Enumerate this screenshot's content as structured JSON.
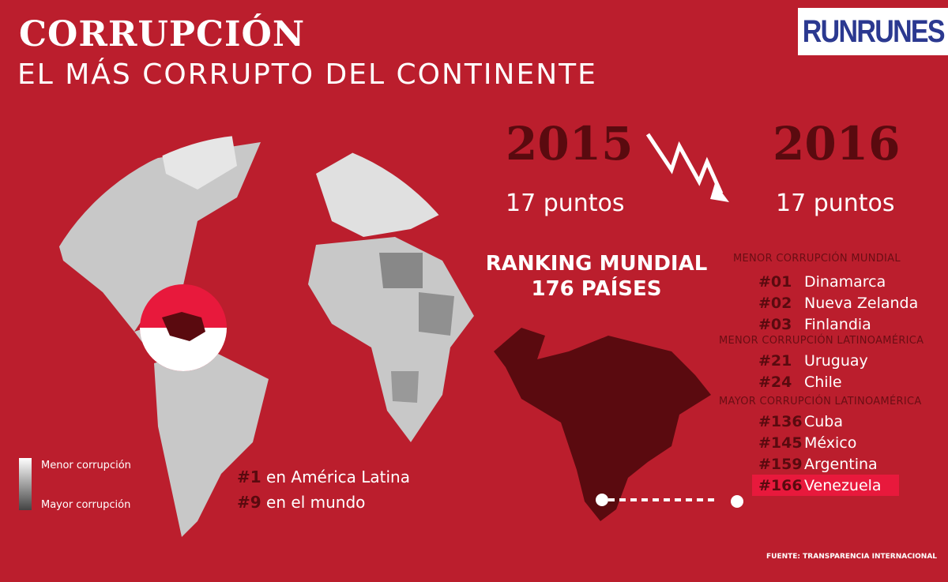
{
  "header": {
    "title": "CORRUPCIÓN",
    "subtitle": "EL MÁS CORRUPTO DEL CONTINENTE",
    "logo": "RUNRUNES"
  },
  "comparison": {
    "year_a": "2015",
    "points_a": "17 puntos",
    "year_b": "2016",
    "points_b": "17 puntos",
    "arrow_icon": "zigzag-down-arrow"
  },
  "ranking": {
    "line1": "RANKING MUNDIAL",
    "line2": "176 PAÍSES"
  },
  "lists": [
    {
      "heading": "MENOR CORRUPCIÓN MUNDIAL",
      "items": [
        {
          "rank": "#01",
          "country": "Dinamarca"
        },
        {
          "rank": "#02",
          "country": "Nueva Zelanda"
        },
        {
          "rank": "#03",
          "country": "Finlandia"
        }
      ]
    },
    {
      "heading": "MENOR CORRUPCIÓN LATINOAMÉRICA",
      "items": [
        {
          "rank": "#21",
          "country": "Uruguay"
        },
        {
          "rank": "#24",
          "country": "Chile"
        }
      ]
    },
    {
      "heading": "MAYOR CORRUPCIÓN LATINOAMÉRICA",
      "items": [
        {
          "rank": "#136",
          "country": "Cuba"
        },
        {
          "rank": "#145",
          "country": "México"
        },
        {
          "rank": "#159",
          "country": "Argentina"
        },
        {
          "rank": "#166",
          "country": "Venezuela"
        }
      ]
    }
  ],
  "legend": {
    "top": "Menor corrupción",
    "bottom": "Mayor corrupción"
  },
  "stats": {
    "latam_rank": "#1",
    "latam_text": "en América Latina",
    "world_rank": "#9",
    "world_text": "en el mundo"
  },
  "source": "FUENTE: TRANSPARENCIA INTERNACIONAL",
  "colors": {
    "background": "#bb1e2d",
    "dark": "#5a0a0f",
    "highlight": "#e8193c",
    "logo_text": "#2b3990"
  }
}
